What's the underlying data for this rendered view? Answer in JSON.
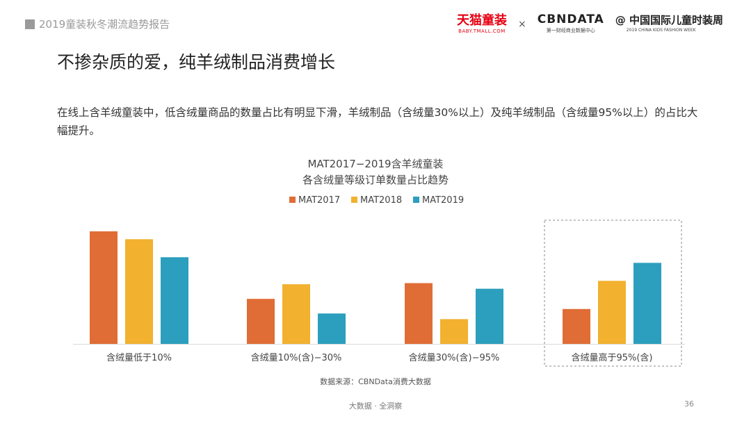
{
  "header": {
    "report_title": "2019童装秋冬潮流趋势报告",
    "logo_tmall": "天猫童装",
    "logo_tmall_sub": "BABY.TMALL.COM",
    "times_sign": "×",
    "logo_cbndata": "CBNDATA",
    "logo_cbndata_sub": "第一财经商业数据中心",
    "logo_ckfw": "@ 中国国际儿童时装周",
    "logo_ckfw_sub": "2019 CHINA KIDS FASHION WEEK"
  },
  "page": {
    "title": "不掺杂质的爱，纯羊绒制品消费增长",
    "description": "在线上含羊绒童装中，低含绒量商品的数量占比有明显下滑，羊绒制品（含绒量30%以上）及纯羊绒制品（含绒量95%以上）的占比大幅提升。",
    "source": "数据来源：CBNData消费大数据",
    "footer": "大数据 · 全洞察",
    "page_number": "36"
  },
  "colors": {
    "MAT2017": "#e06d35",
    "MAT2018": "#f2b12e",
    "MAT2019": "#2b9fbd",
    "axis": "#d9d9d9",
    "highlight_box": "#888888"
  },
  "chart_data": {
    "type": "bar",
    "title": "MAT2017−2019含羊绒童装",
    "subtitle": "各含绒量等级订单数量占比趋势",
    "categories": [
      "含绒量低于10%",
      "含绒量10%(含)−30%",
      "含绒量30%(含)−95%",
      "含绒量高于95%(含)"
    ],
    "series": [
      {
        "name": "MAT2017",
        "values": [
          100,
          40,
          54,
          31
        ]
      },
      {
        "name": "MAT2018",
        "values": [
          93,
          53,
          22,
          56
        ]
      },
      {
        "name": "MAT2019",
        "values": [
          77,
          27,
          49,
          72
        ]
      }
    ],
    "ylim": [
      0,
      100
    ],
    "legend_position": "top",
    "highlighted_category": "含绒量高于95%(含)",
    "grid": false
  }
}
